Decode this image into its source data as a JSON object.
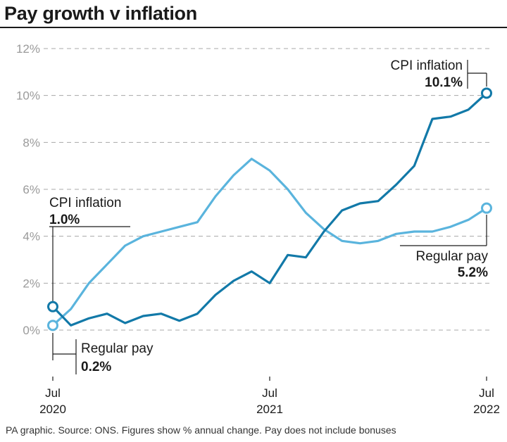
{
  "header": {
    "title": "Pay growth v inflation"
  },
  "footer": {
    "source": "PA graphic. Source: ONS. Figures show % annual change. Pay does not include bonuses"
  },
  "chart_data": {
    "type": "line",
    "title": "Pay growth v inflation",
    "xlabel": "",
    "ylabel": "",
    "ylim": [
      0,
      12
    ],
    "yticks": [
      0,
      2,
      4,
      6,
      8,
      10,
      12
    ],
    "ytick_labels": [
      "0%",
      "2%",
      "4%",
      "6%",
      "8%",
      "10%",
      "12%"
    ],
    "xtick_labels": [
      {
        "month": "Jul",
        "year": "2020",
        "index": 0
      },
      {
        "month": "Jul",
        "year": "2021",
        "index": 12
      },
      {
        "month": "Jul",
        "year": "2022",
        "index": 24
      }
    ],
    "x": [
      "Jul 2020",
      "Aug 2020",
      "Sep 2020",
      "Oct 2020",
      "Nov 2020",
      "Dec 2020",
      "Jan 2021",
      "Feb 2021",
      "Mar 2021",
      "Apr 2021",
      "May 2021",
      "Jun 2021",
      "Jul 2021",
      "Aug 2021",
      "Sep 2021",
      "Oct 2021",
      "Nov 2021",
      "Dec 2021",
      "Jan 2022",
      "Feb 2022",
      "Mar 2022",
      "Apr 2022",
      "May 2022",
      "Jun 2022",
      "Jul 2022"
    ],
    "grid": true,
    "series": [
      {
        "name": "CPI inflation",
        "color": "#1279a8",
        "values": [
          1.0,
          0.2,
          0.5,
          0.7,
          0.3,
          0.6,
          0.7,
          0.4,
          0.7,
          1.5,
          2.1,
          2.5,
          2.0,
          3.2,
          3.1,
          4.2,
          5.1,
          5.4,
          5.5,
          6.2,
          7.0,
          9.0,
          9.1,
          9.4,
          10.1
        ]
      },
      {
        "name": "Regular pay",
        "color": "#5ab4dd",
        "values": [
          0.2,
          0.9,
          2.0,
          2.8,
          3.6,
          4.0,
          4.2,
          4.4,
          4.6,
          5.7,
          6.6,
          7.3,
          6.8,
          6.0,
          5.0,
          4.3,
          3.8,
          3.7,
          3.8,
          4.1,
          4.2,
          4.2,
          4.4,
          4.7,
          5.2
        ]
      }
    ],
    "annotations": {
      "cpi_start": {
        "label": "CPI inflation",
        "value": "1.0%"
      },
      "pay_start": {
        "label": "Regular pay",
        "value": "0.2%"
      },
      "cpi_end": {
        "label": "CPI inflation",
        "value": "10.1%"
      },
      "pay_end": {
        "label": "Regular pay",
        "value": "5.2%"
      }
    }
  }
}
